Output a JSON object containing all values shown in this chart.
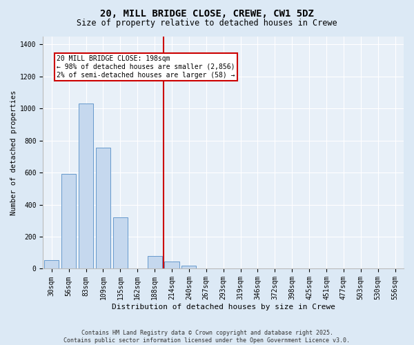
{
  "title": "20, MILL BRIDGE CLOSE, CREWE, CW1 5DZ",
  "subtitle": "Size of property relative to detached houses in Crewe",
  "xlabel": "Distribution of detached houses by size in Crewe",
  "ylabel": "Number of detached properties",
  "categories": [
    "30sqm",
    "56sqm",
    "83sqm",
    "109sqm",
    "135sqm",
    "162sqm",
    "188sqm",
    "214sqm",
    "240sqm",
    "267sqm",
    "293sqm",
    "319sqm",
    "346sqm",
    "372sqm",
    "398sqm",
    "425sqm",
    "451sqm",
    "477sqm",
    "503sqm",
    "530sqm",
    "556sqm"
  ],
  "values": [
    55,
    590,
    1030,
    755,
    320,
    0,
    80,
    45,
    20,
    0,
    0,
    0,
    0,
    0,
    0,
    0,
    0,
    0,
    0,
    0,
    0
  ],
  "bar_color": "#c5d8ee",
  "bar_edge_color": "#6699cc",
  "vline_x_index": 7,
  "vline_label": "20 MILL BRIDGE CLOSE: 198sqm",
  "vline_color": "#cc0000",
  "annotation_line1": "← 98% of detached houses are smaller (2,856)",
  "annotation_line2": "2% of semi-detached houses are larger (58) →",
  "ylim": [
    0,
    1450
  ],
  "yticks": [
    0,
    200,
    400,
    600,
    800,
    1000,
    1200,
    1400
  ],
  "bg_color": "#dce9f5",
  "plot_bg_color": "#e8f0f8",
  "grid_color": "#ffffff",
  "footer_line1": "Contains HM Land Registry data © Crown copyright and database right 2025.",
  "footer_line2": "Contains public sector information licensed under the Open Government Licence v3.0.",
  "title_fontsize": 10,
  "subtitle_fontsize": 8.5,
  "ylabel_fontsize": 7.5,
  "xlabel_fontsize": 8,
  "tick_fontsize": 7,
  "annotation_fontsize": 7,
  "footer_fontsize": 6
}
